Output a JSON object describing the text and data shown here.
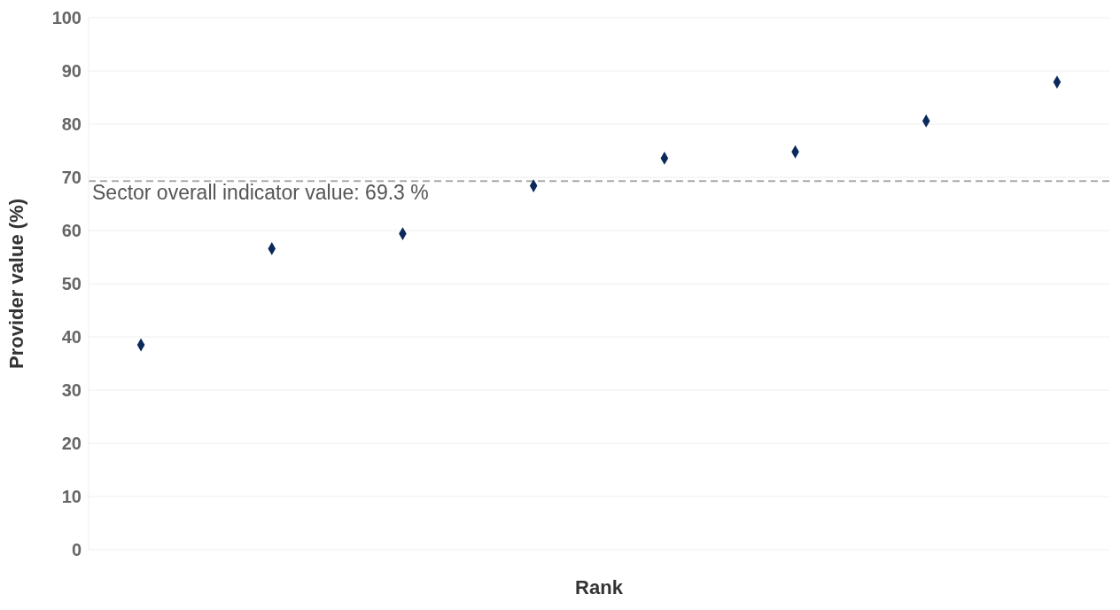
{
  "chart_data": {
    "type": "scatter",
    "xlabel": "Rank",
    "ylabel": "Provider value (%)",
    "categories": [
      null,
      null,
      null,
      null,
      null,
      null,
      null,
      null
    ],
    "series": [
      {
        "color": "#0b2a5b",
        "values": [
          38.5,
          56.6,
          59.4,
          68.4,
          73.6,
          74.8,
          80.6,
          87.9
        ]
      }
    ],
    "ylim": [
      0,
      100
    ],
    "yticks": [
      0,
      10,
      20,
      30,
      40,
      50,
      60,
      70,
      80,
      90,
      100
    ],
    "grid": "y",
    "marker": "diamond",
    "ref_lines": [
      {
        "axis": "y",
        "value": 69.3,
        "label": "Sector overall indicator value: 69.3 %",
        "color": "#aaaaaa",
        "line_style": "dashed"
      }
    ]
  }
}
